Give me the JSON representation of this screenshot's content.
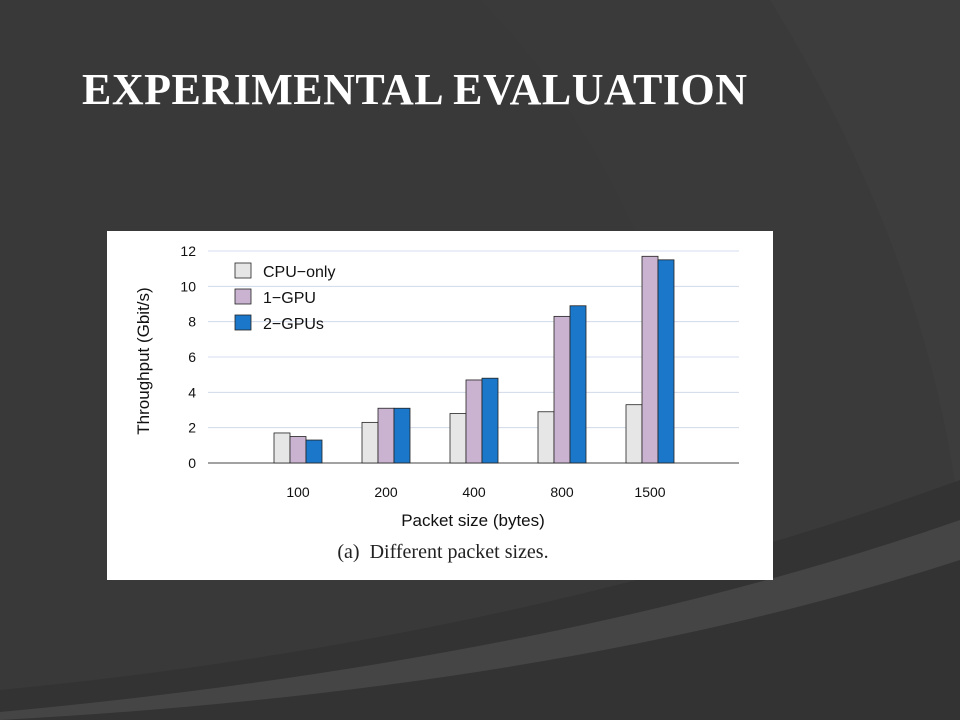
{
  "slide": {
    "title": "EXPERIMENTAL EVALUATION"
  },
  "colors": {
    "background": "#3d3d3d",
    "decoration_dark": "#333333",
    "decoration_light": "#454545",
    "cpu_only": "#e6e6e6",
    "one_gpu": "#c9b3d0",
    "two_gpus": "#1a77c9"
  },
  "chart_data": {
    "type": "bar",
    "categories": [
      "100",
      "200",
      "400",
      "800",
      "1500"
    ],
    "series": [
      {
        "name": "CPU−only",
        "color": "#e6e6e6",
        "values": [
          1.7,
          2.3,
          2.8,
          2.9,
          3.3
        ]
      },
      {
        "name": "1−GPU",
        "color": "#c9b3d0",
        "values": [
          1.5,
          3.1,
          4.7,
          8.3,
          11.7
        ]
      },
      {
        "name": "2−GPUs",
        "color": "#1a77c9",
        "values": [
          1.3,
          3.1,
          4.8,
          8.9,
          11.5
        ]
      }
    ],
    "xlabel": "Packet size (bytes)",
    "ylabel": "Throughput (Gbit/s)",
    "ylim": [
      0,
      12
    ],
    "yticks": [
      0,
      2,
      4,
      6,
      8,
      10,
      12
    ],
    "grid": true,
    "legend_position": "top-left",
    "caption": "(a)  Different packet sizes."
  }
}
